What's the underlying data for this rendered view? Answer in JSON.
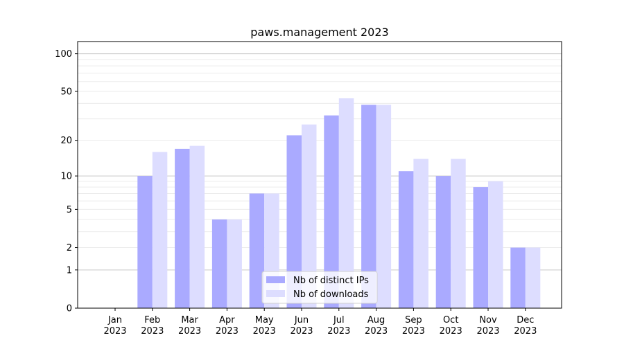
{
  "chart_data": {
    "type": "bar",
    "title": "paws.management 2023",
    "xlabel": "",
    "ylabel": "",
    "yscale": "log10(1+y)",
    "ylim": [
      0,
      125
    ],
    "yticks": [
      0,
      1,
      2,
      5,
      10,
      20,
      50,
      100
    ],
    "grid": true,
    "legend_position": "bottom-center",
    "categories": [
      "Jan\n2023",
      "Feb\n2023",
      "Mar\n2023",
      "Apr\n2023",
      "May\n2023",
      "Jun\n2023",
      "Jul\n2023",
      "Aug\n2023",
      "Sep\n2023",
      "Oct\n2023",
      "Nov\n2023",
      "Dec\n2023"
    ],
    "series": [
      {
        "name": "Nb of distinct IPs",
        "color": "#aaaaff",
        "values": [
          0,
          10,
          17,
          4,
          7,
          22,
          32,
          39,
          11,
          10,
          8,
          2
        ]
      },
      {
        "name": "Nb of downloads",
        "color": "#ddddff",
        "values": [
          0,
          16,
          18,
          4,
          7,
          27,
          44,
          39,
          14,
          14,
          9,
          2
        ]
      }
    ]
  }
}
